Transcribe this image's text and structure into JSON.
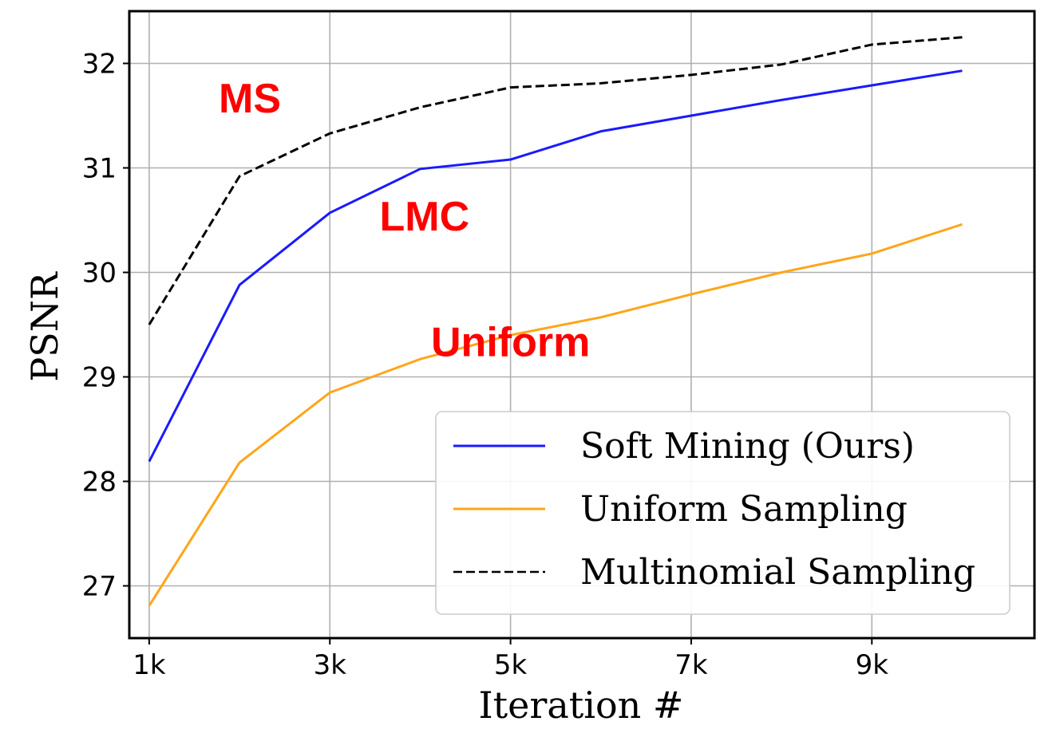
{
  "chart_data": {
    "type": "line",
    "title": "",
    "xlabel": "Iteration #",
    "ylabel": "PSNR",
    "x": [
      1,
      2,
      3,
      4,
      5,
      6,
      7,
      8,
      9,
      10
    ],
    "xlim": [
      0.78,
      10.8
    ],
    "ylim": [
      26.5,
      32.5
    ],
    "xticks": [
      1,
      3,
      5,
      7,
      9
    ],
    "xtick_labels": [
      "1k",
      "3k",
      "5k",
      "7k",
      "9k"
    ],
    "yticks": [
      27,
      28,
      29,
      30,
      31,
      32
    ],
    "ytick_labels": [
      "27",
      "28",
      "29",
      "30",
      "31",
      "32"
    ],
    "grid": true,
    "legend_position": "lower-right",
    "series": [
      {
        "name": "Soft Mining (Ours)",
        "color": "#1a1aff",
        "dash": "solid",
        "values": [
          28.19,
          29.88,
          30.57,
          30.99,
          31.08,
          31.35,
          31.5,
          31.65,
          31.79,
          31.93
        ]
      },
      {
        "name": "Uniform Sampling",
        "color": "#ffa51a",
        "dash": "solid",
        "values": [
          26.81,
          28.18,
          28.85,
          29.17,
          29.4,
          29.57,
          29.79,
          30.0,
          30.18,
          30.46
        ]
      },
      {
        "name": "Multinomial Sampling",
        "color": "#000000",
        "dash": "dashed",
        "values": [
          29.5,
          30.92,
          31.33,
          31.58,
          31.77,
          31.81,
          31.89,
          31.99,
          32.18,
          32.25
        ]
      }
    ],
    "annotations": [
      {
        "text": "MS",
        "color": "#ff0000",
        "x": 1.77,
        "y": 31.53
      },
      {
        "text": "LMC",
        "color": "#ff0000",
        "x": 3.55,
        "y": 30.4
      },
      {
        "text": "Uniform",
        "color": "#ff0000",
        "x": 4.12,
        "y": 29.2
      }
    ]
  }
}
